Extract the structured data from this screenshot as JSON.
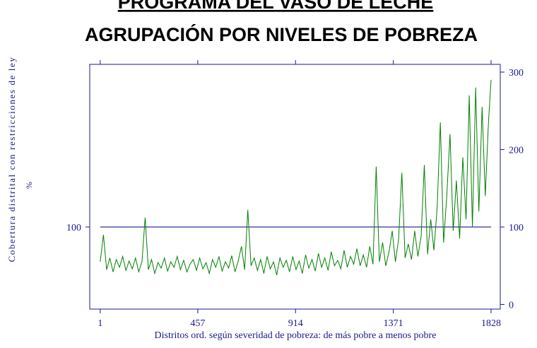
{
  "chart_data": {
    "type": "line",
    "title": "PROGRAMA DEL VASO DE LECHE",
    "subtitle": "AGRUPACIÓN POR NIVELES DE POBREZA",
    "y_label": "Cobertura distrital con restricciones de ley",
    "y_label_unit": "%",
    "x_label": "Distritos ord. según severidad de pobreza: de más pobre a menos pobre",
    "x": [
      1,
      16,
      31,
      46,
      61,
      76,
      91,
      106,
      121,
      136,
      151,
      166,
      181,
      196,
      211,
      226,
      241,
      256,
      271,
      286,
      301,
      316,
      331,
      346,
      361,
      376,
      391,
      406,
      421,
      436,
      451,
      466,
      481,
      496,
      511,
      526,
      541,
      556,
      571,
      586,
      601,
      616,
      631,
      646,
      661,
      676,
      691,
      706,
      721,
      736,
      751,
      766,
      781,
      796,
      811,
      826,
      841,
      856,
      871,
      886,
      901,
      916,
      931,
      946,
      961,
      976,
      991,
      1006,
      1021,
      1036,
      1051,
      1066,
      1081,
      1096,
      1111,
      1126,
      1141,
      1156,
      1171,
      1186,
      1201,
      1216,
      1231,
      1246,
      1261,
      1276,
      1291,
      1306,
      1321,
      1336,
      1351,
      1366,
      1381,
      1396,
      1411,
      1426,
      1441,
      1456,
      1471,
      1486,
      1501,
      1516,
      1531,
      1546,
      1561,
      1576,
      1591,
      1606,
      1621,
      1636,
      1651,
      1666,
      1681,
      1696,
      1711,
      1726,
      1741,
      1756,
      1771,
      1786,
      1801,
      1816,
      1828
    ],
    "series": [
      {
        "color": "#008000",
        "values": [
          55,
          90,
          45,
          60,
          42,
          58,
          48,
          62,
          44,
          56,
          46,
          60,
          42,
          55,
          112,
          45,
          58,
          40,
          54,
          47,
          60,
          43,
          55,
          48,
          62,
          45,
          57,
          42,
          52,
          58,
          44,
          60,
          46,
          54,
          40,
          58,
          48,
          62,
          43,
          55,
          47,
          63,
          42,
          56,
          75,
          45,
          122,
          50,
          60,
          44,
          58,
          40,
          62,
          46,
          55,
          38,
          60,
          48,
          57,
          42,
          62,
          45,
          56,
          40,
          64,
          47,
          58,
          43,
          66,
          48,
          60,
          44,
          68,
          50,
          57,
          46,
          70,
          48,
          62,
          52,
          72,
          50,
          64,
          48,
          75,
          52,
          178,
          55,
          80,
          50,
          68,
          95,
          55,
          85,
          170,
          60,
          78,
          58,
          95,
          62,
          88,
          180,
          65,
          110,
          70,
          125,
          235,
          80,
          140,
          220,
          95,
          160,
          85,
          190,
          110,
          270,
          100,
          280,
          120,
          255,
          140,
          235,
          290
        ]
      }
    ],
    "hline": 100,
    "hline_color": "#1a1a8c",
    "xlim": [
      -48,
      1871
    ],
    "xticks": [
      1,
      457,
      914,
      1371,
      1828
    ],
    "ylim": [
      -6,
      310
    ],
    "yticks": [
      100
    ],
    "y2lim": [
      -6,
      310
    ],
    "y2ticks": [
      0,
      100,
      200,
      300
    ]
  }
}
